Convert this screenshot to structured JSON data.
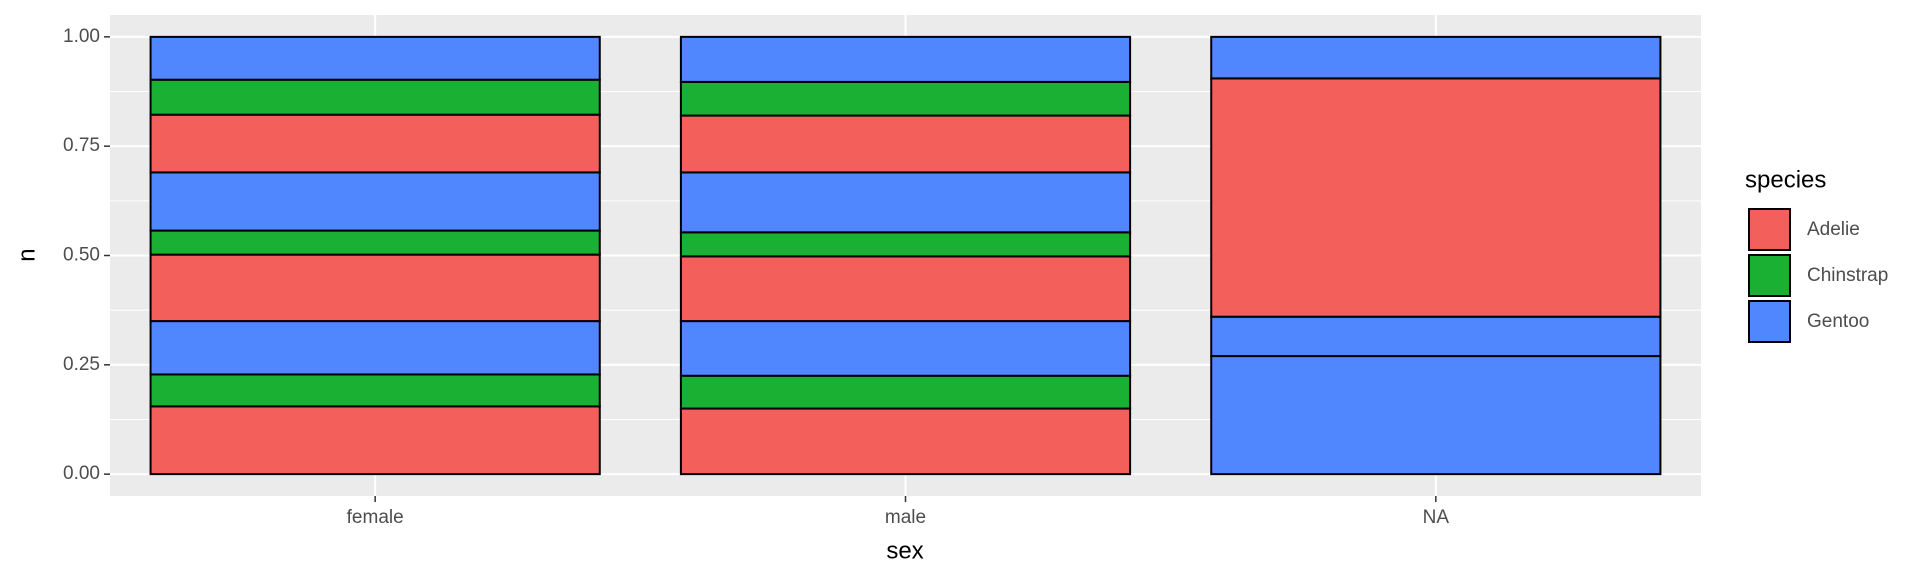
{
  "chart_data": {
    "type": "stacked_bar_fill",
    "x_label": "sex",
    "y_label": "n",
    "categories": [
      "female",
      "male",
      "NA"
    ],
    "legend_title": "species",
    "species": [
      {
        "name": "Adelie",
        "color": "#f35f5a"
      },
      {
        "name": "Chinstrap",
        "color": "#19b033"
      },
      {
        "name": "Gentoo",
        "color": "#5087ff"
      }
    ],
    "segments": [
      {
        "species": 0,
        "values": [
          0.155,
          0.15,
          null
        ]
      },
      {
        "species": 1,
        "values": [
          0.073,
          0.075,
          null
        ]
      },
      {
        "species": 2,
        "values": [
          0.122,
          0.125,
          0.27
        ]
      },
      {
        "species": 0,
        "values": [
          0.152,
          0.148,
          null
        ]
      },
      {
        "species": 1,
        "values": [
          0.055,
          0.055,
          null
        ]
      },
      {
        "species": 2,
        "values": [
          0.133,
          0.137,
          0.09
        ]
      },
      {
        "species": 0,
        "values": [
          0.132,
          0.13,
          0.545
        ]
      },
      {
        "species": 1,
        "values": [
          0.08,
          0.077,
          null
        ]
      },
      {
        "species": 2,
        "values": [
          0.098,
          0.103,
          0.095
        ]
      }
    ],
    "ylim": [
      -0.05,
      1.05
    ],
    "yticks": [
      {
        "value": 0,
        "label": "0.00"
      },
      {
        "value": 0.25,
        "label": "0.25"
      },
      {
        "value": 0.5,
        "label": "0.50"
      },
      {
        "value": 0.75,
        "label": "0.75"
      },
      {
        "value": 1,
        "label": "1.00"
      }
    ],
    "grid": true
  }
}
